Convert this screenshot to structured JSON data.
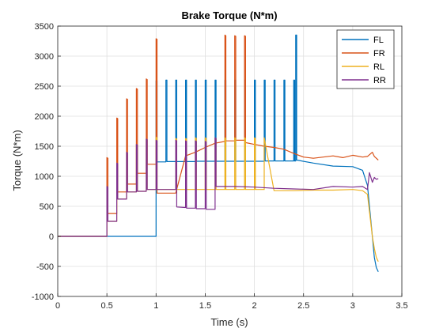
{
  "chart_data": {
    "type": "line",
    "title": "Brake Torque (N*m)",
    "xlabel": "Time (s)",
    "ylabel": "Torque (N*m)",
    "xlim": [
      0,
      3.5
    ],
    "ylim": [
      -1000,
      3500
    ],
    "xticks": [
      "0",
      "0.5",
      "1",
      "1.5",
      "2",
      "2.5",
      "3",
      "3.5"
    ],
    "yticks": [
      "-1000",
      "-500",
      "0",
      "500",
      "1000",
      "1500",
      "2000",
      "2500",
      "3000",
      "3500"
    ],
    "grid": true,
    "legend_position": "top-right",
    "series": [
      {
        "name": "FL",
        "color": "#0072BD",
        "x": [
          0,
          0.5,
          1.0,
          1.0,
          1.0,
          1.01,
          1.01,
          1.1,
          1.1,
          1.11,
          1.11,
          1.2,
          1.2,
          1.21,
          1.21,
          1.3,
          1.3,
          1.31,
          1.31,
          1.4,
          1.4,
          1.41,
          1.41,
          1.5,
          1.5,
          1.51,
          1.51,
          1.6,
          1.6,
          1.61,
          1.61,
          1.7,
          1.7,
          1.71,
          1.71,
          1.8,
          1.8,
          1.81,
          1.81,
          1.9,
          1.9,
          1.91,
          1.91,
          2.0,
          2.0,
          2.01,
          2.01,
          2.1,
          2.1,
          2.11,
          2.11,
          2.2,
          2.2,
          2.21,
          2.21,
          2.3,
          2.3,
          2.31,
          2.31,
          2.4,
          2.4,
          2.41,
          2.41,
          2.42,
          2.42,
          2.43,
          2.43,
          2.6,
          2.8,
          3.0,
          3.1,
          3.15,
          3.2,
          3.22,
          3.24,
          3.26
        ],
        "y": [
          0,
          0,
          0,
          1240,
          2590,
          2590,
          1240,
          1240,
          2600,
          2600,
          1245,
          1245,
          2600,
          2600,
          1245,
          1245,
          2600,
          2600,
          1245,
          1245,
          2600,
          2600,
          1250,
          1250,
          2600,
          2600,
          1250,
          1250,
          2600,
          2600,
          1250,
          1250,
          2600,
          2600,
          1250,
          1250,
          2600,
          2600,
          1250,
          1250,
          2600,
          2600,
          1250,
          1250,
          2600,
          2600,
          1250,
          1250,
          2600,
          2600,
          1255,
          1255,
          2600,
          2600,
          1255,
          1255,
          2600,
          2600,
          1255,
          1255,
          2600,
          2600,
          1255,
          1255,
          3350,
          3350,
          1270,
          1220,
          1170,
          1160,
          1100,
          850,
          0,
          -350,
          -520,
          -590
        ]
      },
      {
        "name": "FR",
        "color": "#D95319",
        "x": [
          0,
          0.5,
          0.5,
          0.51,
          0.51,
          0.6,
          0.6,
          0.61,
          0.61,
          0.7,
          0.7,
          0.71,
          0.71,
          0.8,
          0.8,
          0.81,
          0.81,
          0.9,
          0.9,
          0.91,
          0.91,
          1.0,
          1.0,
          1.01,
          1.01,
          1.1,
          1.2,
          1.3,
          1.4,
          1.5,
          1.6,
          1.7,
          1.7,
          1.71,
          1.71,
          1.8,
          1.8,
          1.81,
          1.81,
          1.9,
          1.9,
          1.91,
          1.91,
          2.0,
          2.1,
          2.2,
          2.3,
          2.4,
          2.5,
          2.6,
          2.7,
          2.8,
          2.9,
          3.0,
          3.1,
          3.15,
          3.2,
          3.22,
          3.24,
          3.26
        ],
        "y": [
          0,
          0,
          1310,
          1300,
          380,
          380,
          1970,
          1960,
          740,
          740,
          2290,
          2280,
          870,
          870,
          2460,
          2450,
          1050,
          1050,
          2620,
          2610,
          1200,
          1200,
          3290,
          3280,
          720,
          720,
          720,
          1340,
          1400,
          1480,
          1550,
          1580,
          3350,
          3340,
          1590,
          1590,
          3340,
          3330,
          1600,
          1600,
          3340,
          3330,
          1560,
          1530,
          1500,
          1480,
          1450,
          1380,
          1320,
          1300,
          1320,
          1340,
          1310,
          1350,
          1320,
          1330,
          1400,
          1330,
          1300,
          1270
        ]
      },
      {
        "name": "RL",
        "color": "#EDB120",
        "x": [
          0,
          0.5,
          0.5,
          0.51,
          0.51,
          0.6,
          0.6,
          0.61,
          0.61,
          0.7,
          0.7,
          0.71,
          0.71,
          0.8,
          0.8,
          0.81,
          0.81,
          0.9,
          0.9,
          0.91,
          0.91,
          1.0,
          1.0,
          1.01,
          1.01,
          1.2,
          1.2,
          1.21,
          1.21,
          1.3,
          1.3,
          1.31,
          1.31,
          1.4,
          1.4,
          1.41,
          1.41,
          1.5,
          1.5,
          1.51,
          1.51,
          1.6,
          1.6,
          1.61,
          1.61,
          1.7,
          1.7,
          1.71,
          1.71,
          1.8,
          1.8,
          1.81,
          1.81,
          1.9,
          1.9,
          1.91,
          1.91,
          2.0,
          2.0,
          2.01,
          2.01,
          2.1,
          2.1,
          2.2,
          2.4,
          2.6,
          2.8,
          3.0,
          3.1,
          3.15,
          3.2,
          3.22,
          3.24,
          3.26
        ],
        "y": [
          0,
          0,
          830,
          820,
          250,
          250,
          1220,
          1210,
          620,
          620,
          1400,
          1390,
          740,
          740,
          1530,
          1520,
          750,
          750,
          1620,
          1610,
          780,
          780,
          1650,
          1640,
          780,
          780,
          1630,
          1620,
          780,
          780,
          1630,
          1620,
          780,
          780,
          1640,
          1630,
          780,
          780,
          1640,
          1630,
          780,
          780,
          1640,
          1630,
          780,
          780,
          1640,
          1630,
          780,
          780,
          1640,
          1630,
          780,
          780,
          1640,
          1630,
          780,
          780,
          1640,
          1630,
          780,
          780,
          1640,
          760,
          760,
          770,
          770,
          780,
          760,
          700,
          0,
          -200,
          -350,
          -420
        ]
      },
      {
        "name": "RR",
        "color": "#7E2F8E",
        "x": [
          0,
          0.5,
          0.5,
          0.51,
          0.51,
          0.6,
          0.6,
          0.61,
          0.61,
          0.7,
          0.7,
          0.71,
          0.71,
          0.8,
          0.8,
          0.81,
          0.81,
          0.9,
          0.9,
          0.91,
          0.91,
          1.0,
          1.0,
          1.01,
          1.01,
          1.2,
          1.2,
          1.21,
          1.21,
          1.3,
          1.3,
          1.31,
          1.31,
          1.4,
          1.4,
          1.41,
          1.41,
          1.5,
          1.5,
          1.51,
          1.51,
          1.6,
          1.6,
          1.61,
          1.61,
          1.8,
          2.0,
          2.2,
          2.4,
          2.6,
          2.8,
          3.0,
          3.1,
          3.15,
          3.17,
          3.2,
          3.22,
          3.24,
          3.26
        ],
        "y": [
          0,
          0,
          830,
          820,
          250,
          250,
          1220,
          1210,
          620,
          620,
          1400,
          1390,
          740,
          740,
          1530,
          1520,
          750,
          750,
          1620,
          1610,
          780,
          780,
          1600,
          1590,
          780,
          780,
          1600,
          1590,
          490,
          480,
          1590,
          1580,
          470,
          470,
          1590,
          1580,
          460,
          460,
          1580,
          1570,
          450,
          450,
          1640,
          1630,
          830,
          830,
          820,
          800,
          790,
          780,
          830,
          820,
          830,
          780,
          1060,
          900,
          980,
          950,
          960
        ]
      }
    ]
  }
}
